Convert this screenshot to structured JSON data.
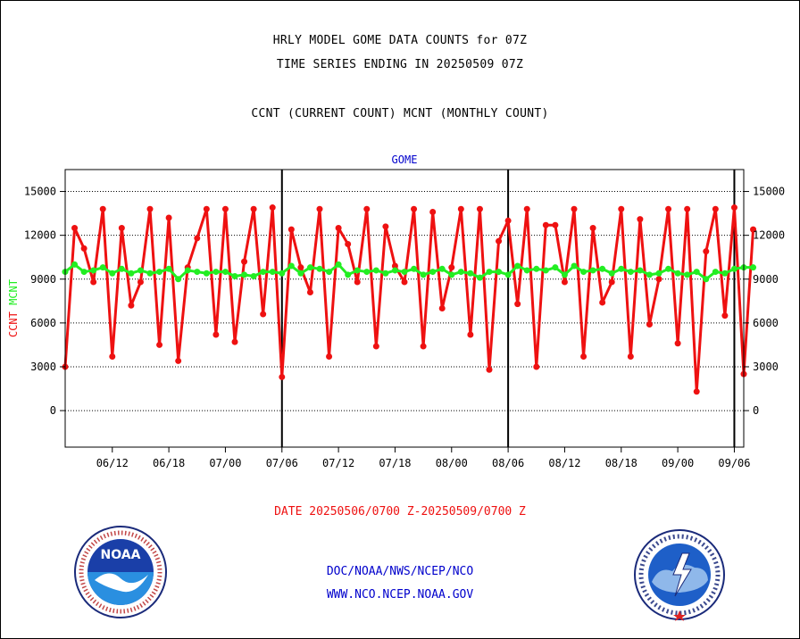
{
  "header": {
    "line1": "HRLY MODEL GOME DATA COUNTS for 07Z",
    "line2": "TIME SERIES ENDING IN 20250509 07Z",
    "line3": "CCNT (CURRENT COUNT) MCNT (MONTHLY COUNT)"
  },
  "footer": {
    "date_range": "DATE 20250506/0700 Z-20250509/0700 Z",
    "org_path": "DOC/NOAA/NWS/NCEP/NCO",
    "url": "WWW.NCO.NCEP.NOAA.GOV"
  },
  "logos": {
    "noaa_text": "NOAA",
    "nws_text": "NATIONAL WEATHER SERVICE"
  },
  "colors": {
    "ccnt": "#ee1111",
    "mcnt": "#22ee22",
    "label_blue": "#0000cc",
    "axis": "#000000"
  },
  "chart_data": {
    "type": "line",
    "title": "GOME",
    "ylabel_left": [
      "CCNT",
      "MCNT"
    ],
    "ylim": [
      -2500,
      16500
    ],
    "yticks": [
      0,
      3000,
      6000,
      9000,
      12000,
      15000
    ],
    "ytick_labels": [
      "0",
      "3000",
      "6000",
      "9000",
      "12000",
      "15000"
    ],
    "xlim": [
      0,
      72
    ],
    "x_ticks": [
      {
        "x": 5,
        "label": "06/12"
      },
      {
        "x": 11,
        "label": "06/18"
      },
      {
        "x": 17,
        "label": "07/00"
      },
      {
        "x": 23,
        "label": "07/06"
      },
      {
        "x": 29,
        "label": "07/12"
      },
      {
        "x": 35,
        "label": "07/18"
      },
      {
        "x": 41,
        "label": "08/00"
      },
      {
        "x": 47,
        "label": "08/06"
      },
      {
        "x": 53,
        "label": "08/12"
      },
      {
        "x": 59,
        "label": "08/18"
      },
      {
        "x": 65,
        "label": "09/00"
      },
      {
        "x": 71,
        "label": "09/06"
      }
    ],
    "day_boundaries": [
      23,
      47,
      71
    ],
    "grid": "horizontal dotted",
    "series": [
      {
        "name": "CCNT",
        "values": [
          3000,
          12500,
          11100,
          8800,
          13800,
          3700,
          12500,
          7200,
          8800,
          13800,
          4500,
          13200,
          3400,
          9800,
          11800,
          13800,
          5200,
          13800,
          4700,
          10200,
          13800,
          6600,
          13900,
          2300,
          12400,
          9800,
          8100,
          13800,
          3700,
          12500,
          11400,
          8800,
          13800,
          4400,
          12600,
          9900,
          8800,
          13800,
          4400,
          13600,
          7000,
          9800,
          13800,
          5200,
          13800,
          2800,
          11600,
          13000,
          7300,
          13800,
          3000,
          12700,
          12700,
          8800,
          13800,
          3700,
          12500,
          7400,
          8800,
          13800,
          3700,
          13100,
          5900,
          9000,
          13800,
          4600,
          13800,
          1300,
          10900,
          13800,
          6500,
          13900,
          2500,
          12400
        ]
      },
      {
        "name": "MCNT",
        "values": [
          9500,
          10000,
          9500,
          9600,
          9800,
          9400,
          9700,
          9400,
          9600,
          9400,
          9500,
          9700,
          9000,
          9600,
          9500,
          9400,
          9500,
          9500,
          9200,
          9300,
          9200,
          9500,
          9500,
          9400,
          9900,
          9400,
          9800,
          9700,
          9500,
          10000,
          9300,
          9600,
          9500,
          9600,
          9400,
          9600,
          9500,
          9700,
          9300,
          9500,
          9700,
          9300,
          9500,
          9400,
          9100,
          9500,
          9500,
          9300,
          9900,
          9600,
          9700,
          9600,
          9800,
          9300,
          9900,
          9500,
          9600,
          9700,
          9400,
          9700,
          9500,
          9600,
          9300,
          9400,
          9700,
          9400,
          9300,
          9500,
          9000,
          9500,
          9400,
          9700,
          9800,
          9800
        ]
      }
    ]
  }
}
